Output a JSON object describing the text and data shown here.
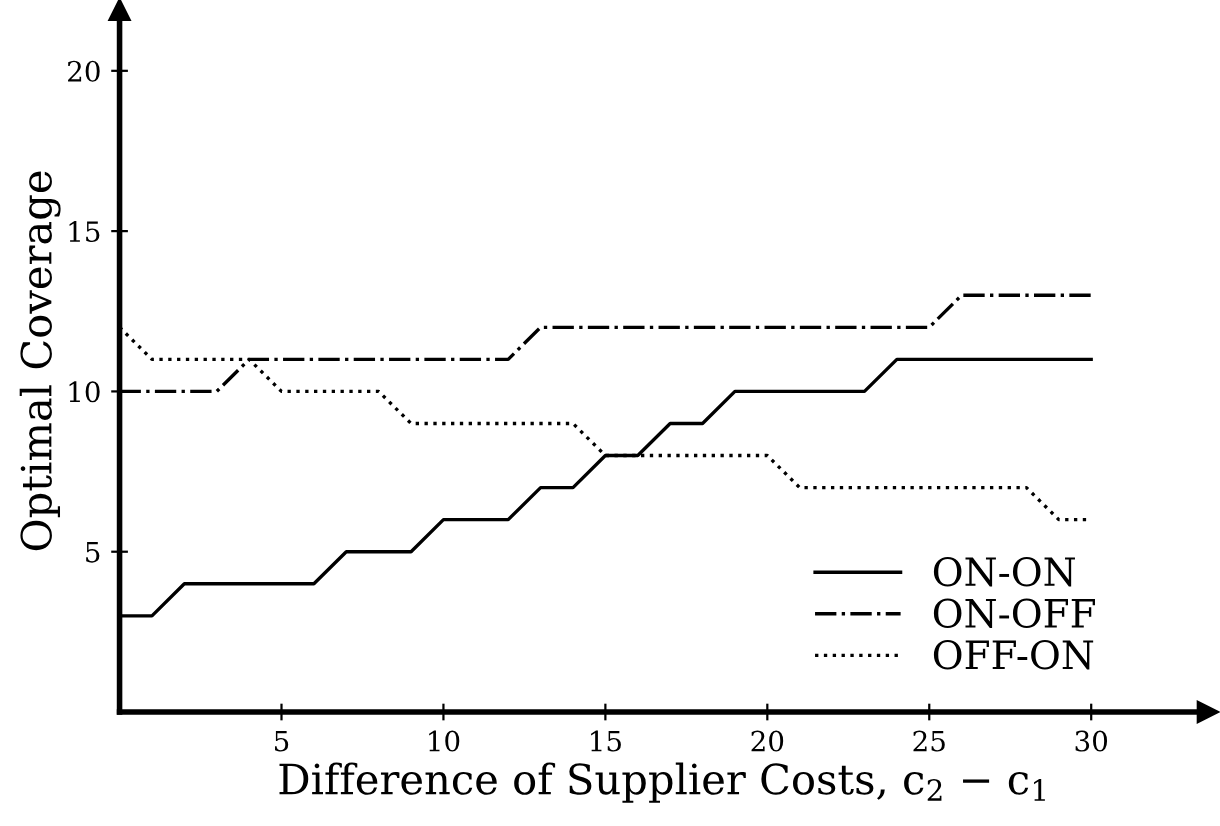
{
  "chart_data": {
    "type": "line",
    "xlabel": "Difference of Supplier Costs, c$_{2}$ − c$_{1}$",
    "ylabel": "Optimal Coverage",
    "x": [
      0,
      1,
      2,
      3,
      4,
      5,
      6,
      7,
      8,
      9,
      10,
      11,
      12,
      13,
      14,
      15,
      16,
      17,
      18,
      19,
      20,
      21,
      22,
      23,
      24,
      25,
      26,
      27,
      28,
      29,
      30
    ],
    "series": [
      {
        "name": "ON-ON",
        "color": "#000000",
        "line_style": "solid",
        "values": [
          3,
          3,
          4,
          4,
          4,
          4,
          4,
          5,
          5,
          5,
          6,
          6,
          6,
          7,
          7,
          8,
          8,
          9,
          9,
          10,
          10,
          10,
          10,
          10,
          11,
          11,
          11,
          11,
          11,
          11,
          11
        ]
      },
      {
        "name": "ON-OFF",
        "color": "#000000",
        "line_style": "dashdot",
        "values": [
          10,
          10,
          10,
          10,
          11,
          11,
          11,
          11,
          11,
          11,
          11,
          11,
          11,
          12,
          12,
          12,
          12,
          12,
          12,
          12,
          12,
          12,
          12,
          12,
          12,
          12,
          13,
          13,
          13,
          13,
          13
        ]
      },
      {
        "name": "OFF-ON",
        "color": "#000000",
        "line_style": "dotted",
        "values": [
          12,
          11,
          11,
          11,
          11,
          10,
          10,
          10,
          10,
          9,
          9,
          9,
          9,
          9,
          9,
          8,
          8,
          8,
          8,
          8,
          8,
          7,
          7,
          7,
          7,
          7,
          7,
          7,
          7,
          6,
          6
        ]
      }
    ],
    "xlim": [
      0,
      33.6
    ],
    "ylim": [
      0,
      21.9
    ],
    "xticks": [
      5,
      10,
      15,
      20,
      25,
      30
    ],
    "yticks": [
      5,
      10,
      15,
      20
    ],
    "grid": false,
    "legend": "bottom right",
    "marker": "none"
  }
}
